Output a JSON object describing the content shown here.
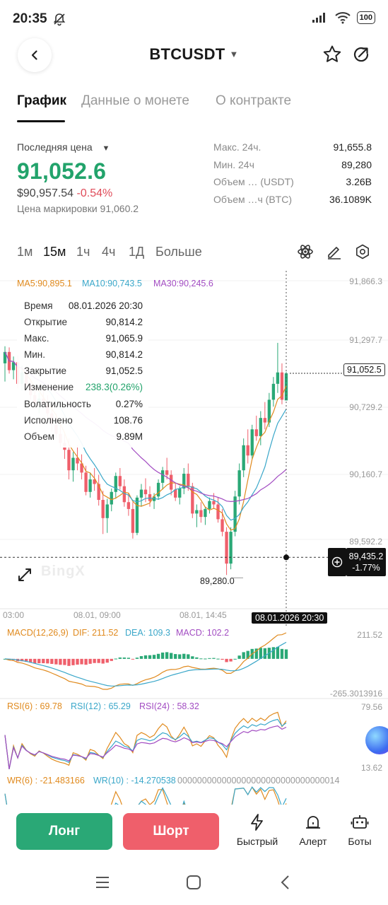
{
  "status_bar": {
    "time": "20:35",
    "battery": "100"
  },
  "header": {
    "symbol": "BTCUSDT"
  },
  "tabs": [
    {
      "label": "График",
      "active": true
    },
    {
      "label": "Данные о монете",
      "active": false
    },
    {
      "label": "О контракте",
      "active": false
    }
  ],
  "price": {
    "last_label": "Последняя цена",
    "last_price": "91,052.6",
    "usd_price": "$90,957.54",
    "change_pct": "-0.54%",
    "mark_label": "Цена маркировки",
    "mark_price": "91,060.2"
  },
  "stats": [
    {
      "label": "Макс. 24ч.",
      "value": "91,655.8"
    },
    {
      "label": "Мин. 24ч",
      "value": "89,280"
    },
    {
      "label": "Объем … (USDT)",
      "value": "3.26B"
    },
    {
      "label": "Объем …ч (BTC)",
      "value": "36.1089K"
    }
  ],
  "intervals": [
    {
      "label": "1м",
      "active": false
    },
    {
      "label": "15м",
      "active": true
    },
    {
      "label": "1ч",
      "active": false
    },
    {
      "label": "4ч",
      "active": false
    },
    {
      "label": "1Д",
      "active": false
    },
    {
      "label": "Больше",
      "active": false
    }
  ],
  "ma_legend": {
    "ma5": "MA5:90,895.1",
    "ma10": "MA10:90,743.5",
    "ma30": "MA30:90,245.6"
  },
  "tooltip": [
    {
      "label": "Время",
      "value": "08.01.2026 20:30"
    },
    {
      "label": "Открытие",
      "value": "90,814.2"
    },
    {
      "label": "Макс.",
      "value": "91,065.9"
    },
    {
      "label": "Мин.",
      "value": "90,814.2"
    },
    {
      "label": "Закрытие",
      "value": "91,052.5"
    },
    {
      "label": "Изменение",
      "value": "238.3(0.26%)"
    },
    {
      "label": "Волатильность",
      "value": "0.27%"
    },
    {
      "label": "Исполнено",
      "value": "108.76"
    },
    {
      "label": "Объем",
      "value": "9.89M"
    }
  ],
  "y_axis": [
    "91,866.3",
    "91,297.7",
    "90,729.2",
    "90,160.7",
    "89,592.2"
  ],
  "x_axis": [
    "03:00",
    "08.01, 09:00",
    "08.01, 14:45"
  ],
  "last_price_tag": "91,052.5",
  "crosshair": {
    "price": "89,435.2",
    "pct": "-1.77%",
    "time": "08.01.2026 20:30"
  },
  "low_marker": "89,280.0",
  "watermark": "BingX",
  "macd": {
    "title": "MACD(12,26,9)",
    "dif": "DIF: 211.52",
    "dea": "DEA: 109.3",
    "macd": "MACD: 102.2",
    "top": "211.52",
    "bottom": "-265.3013916"
  },
  "rsi": {
    "r6": "RSI(6) : 69.78",
    "r12": "RSI(12) : 65.29",
    "r24": "RSI(24) : 58.32",
    "top": "79.56",
    "bottom": "13.62"
  },
  "wr": {
    "w6": "WR(6) : -21.483166",
    "w10": "WR(10) : -14.270538",
    "tail": "000000000000000000000000000000014"
  },
  "actions": {
    "long": "Лонг",
    "short": "Шорт",
    "quick": "Быстрый",
    "alert": "Алерт",
    "bots": "Боты"
  },
  "colors": {
    "up": "#2aa876",
    "down": "#ef5f6b",
    "ma5": "#e08a1e",
    "ma10": "#3aa7c9",
    "ma30": "#a24cc2"
  },
  "candles": [
    [
      91140,
      91290,
      90980,
      91240
    ],
    [
      91240,
      91280,
      91050,
      91080
    ],
    [
      91080,
      91200,
      91000,
      91150
    ],
    [
      91150,
      91210,
      90920,
      90960
    ],
    [
      90960,
      91120,
      90900,
      91060
    ],
    [
      91060,
      91100,
      90930,
      90950
    ],
    [
      90950,
      90980,
      90820,
      90860
    ],
    [
      90860,
      90900,
      90760,
      90790
    ],
    [
      90790,
      90880,
      90700,
      90830
    ],
    [
      90830,
      90910,
      90760,
      90780
    ],
    [
      90780,
      90860,
      90650,
      90700
    ],
    [
      90700,
      90780,
      90540,
      90600
    ],
    [
      90600,
      90700,
      90480,
      90520
    ],
    [
      90520,
      90620,
      90400,
      90440
    ],
    [
      90440,
      90540,
      90300,
      90380
    ],
    [
      90380,
      90480,
      90120,
      90200
    ],
    [
      90200,
      90360,
      90100,
      90310
    ],
    [
      90310,
      90420,
      90200,
      90260
    ],
    [
      90260,
      90340,
      90120,
      90180
    ],
    [
      90180,
      90240,
      89980,
      90010
    ],
    [
      90010,
      90180,
      89960,
      90120
    ],
    [
      90120,
      90220,
      90020,
      90080
    ],
    [
      90080,
      90160,
      89890,
      89940
    ],
    [
      89940,
      90020,
      89640,
      89780
    ],
    [
      89780,
      89950,
      89650,
      89900
    ],
    [
      89900,
      90040,
      89840,
      90010
    ],
    [
      90010,
      90180,
      89950,
      90150
    ],
    [
      90150,
      90220,
      90030,
      90060
    ],
    [
      90060,
      90120,
      89880,
      89920
    ],
    [
      89920,
      90000,
      89800,
      89860
    ],
    [
      89860,
      89920,
      89600,
      89650
    ],
    [
      89650,
      89980,
      89630,
      89960
    ],
    [
      89960,
      90080,
      89880,
      90030
    ],
    [
      90030,
      90130,
      89920,
      89990
    ],
    [
      89990,
      90060,
      89880,
      89930
    ],
    [
      89930,
      90000,
      89860,
      89970
    ],
    [
      89970,
      90120,
      89940,
      90090
    ],
    [
      90090,
      90230,
      90030,
      90200
    ],
    [
      90200,
      90310,
      90120,
      90160
    ],
    [
      90160,
      90200,
      89980,
      90030
    ],
    [
      90030,
      90090,
      89930,
      89960
    ],
    [
      89960,
      90060,
      89900,
      90040
    ],
    [
      90040,
      90220,
      89990,
      90170
    ],
    [
      90170,
      90260,
      90020,
      90060
    ],
    [
      90060,
      90090,
      89780,
      89820
    ],
    [
      89820,
      89900,
      89700,
      89850
    ],
    [
      89850,
      89920,
      89740,
      89790
    ],
    [
      89790,
      89880,
      89720,
      89860
    ],
    [
      89860,
      89960,
      89820,
      89930
    ],
    [
      89930,
      90000,
      89860,
      89900
    ],
    [
      89900,
      89960,
      89740,
      89770
    ],
    [
      89770,
      89860,
      89620,
      89660
    ],
    [
      89660,
      89700,
      89280,
      89380
    ],
    [
      89380,
      89700,
      89330,
      89660
    ],
    [
      89660,
      90020,
      89620,
      89970
    ],
    [
      89970,
      90260,
      89900,
      90200
    ],
    [
      90200,
      90480,
      90140,
      90420
    ],
    [
      90420,
      90560,
      90260,
      90330
    ],
    [
      90330,
      90600,
      90300,
      90560
    ],
    [
      90560,
      90680,
      90460,
      90500
    ],
    [
      90500,
      90720,
      90420,
      90660
    ],
    [
      90660,
      90800,
      90560,
      90620
    ],
    [
      90620,
      90880,
      90580,
      90820
    ],
    [
      90820,
      91020,
      90760,
      90960
    ],
    [
      90960,
      91320,
      90880,
      91060
    ],
    [
      91060,
      91140,
      90780,
      90820
    ],
    [
      90814.2,
      91065.9,
      90814.2,
      91052.5
    ]
  ]
}
